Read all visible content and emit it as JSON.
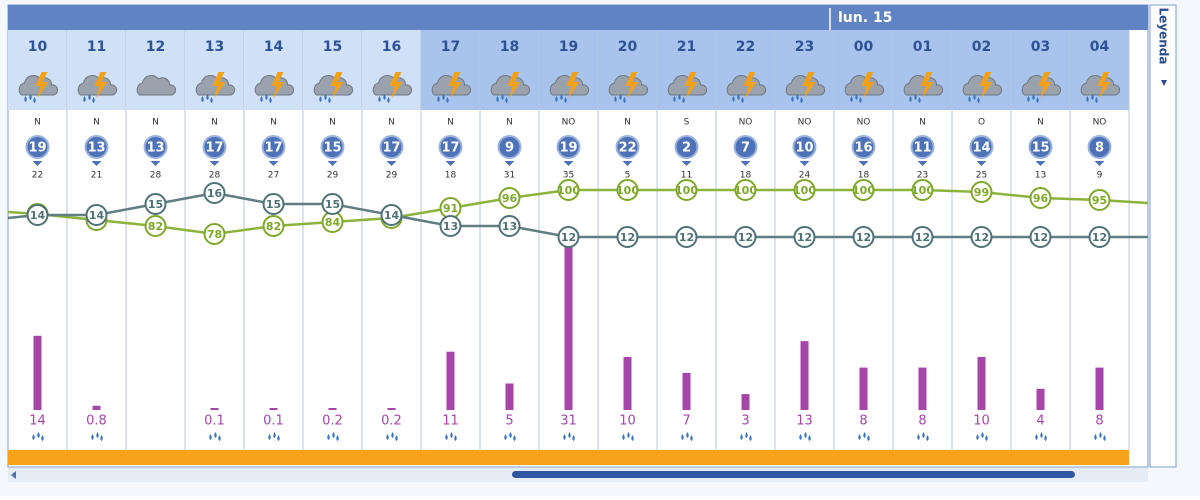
{
  "day_label": "lun. 15",
  "legend_tab": "Leyenda",
  "columns": [
    {
      "hour": "10",
      "wind_dir": "N",
      "wind": 19,
      "gust": 22,
      "temp": 14,
      "humidity": 88,
      "precip": 14
    },
    {
      "hour": "11",
      "wind_dir": "N",
      "wind": 13,
      "gust": 21,
      "temp": 14,
      "humidity": 85,
      "precip": 0.8
    },
    {
      "hour": "12",
      "wind_dir": "N",
      "wind": 13,
      "gust": 28,
      "temp": 15,
      "humidity": 82,
      "precip": null
    },
    {
      "hour": "13",
      "wind_dir": "N",
      "wind": 17,
      "gust": 28,
      "temp": 16,
      "humidity": 78,
      "precip": 0.1
    },
    {
      "hour": "14",
      "wind_dir": "N",
      "wind": 17,
      "gust": 27,
      "temp": 15,
      "humidity": 82,
      "precip": 0.1
    },
    {
      "hour": "15",
      "wind_dir": "N",
      "wind": 15,
      "gust": 29,
      "temp": 15,
      "humidity": 84,
      "precip": 0.2
    },
    {
      "hour": "16",
      "wind_dir": "N",
      "wind": 17,
      "gust": 29,
      "temp": 14,
      "humidity": 86,
      "precip": 0.2
    },
    {
      "hour": "17",
      "wind_dir": "N",
      "wind": 17,
      "gust": 18,
      "temp": 13,
      "humidity": 91,
      "precip": 11
    },
    {
      "hour": "18",
      "wind_dir": "N",
      "wind": 9,
      "gust": 31,
      "temp": 13,
      "humidity": 96,
      "precip": 5
    },
    {
      "hour": "19",
      "wind_dir": "NO",
      "wind": 19,
      "gust": 35,
      "temp": 12,
      "humidity": 100,
      "precip": 31
    },
    {
      "hour": "20",
      "wind_dir": "N",
      "wind": 22,
      "gust": 5,
      "temp": 12,
      "humidity": 100,
      "precip": 10
    },
    {
      "hour": "21",
      "wind_dir": "S",
      "wind": 2,
      "gust": 11,
      "temp": 12,
      "humidity": 100,
      "precip": 7
    },
    {
      "hour": "22",
      "wind_dir": "NO",
      "wind": 7,
      "gust": 18,
      "temp": 12,
      "humidity": 100,
      "precip": 3
    },
    {
      "hour": "23",
      "wind_dir": "NO",
      "wind": 10,
      "gust": 24,
      "temp": 12,
      "humidity": 100,
      "precip": 13
    },
    {
      "hour": "00",
      "wind_dir": "NO",
      "wind": 16,
      "gust": 18,
      "temp": 12,
      "humidity": 100,
      "precip": 8
    },
    {
      "hour": "01",
      "wind_dir": "N",
      "wind": 11,
      "gust": 23,
      "temp": 12,
      "humidity": 100,
      "precip": 8
    },
    {
      "hour": "02",
      "wind_dir": "O",
      "wind": 14,
      "gust": 25,
      "temp": 12,
      "humidity": 99,
      "precip": 10
    },
    {
      "hour": "03",
      "wind_dir": "N",
      "wind": 15,
      "gust": 13,
      "temp": 12,
      "humidity": 96,
      "precip": 4
    },
    {
      "hour": "04",
      "wind_dir": "NO",
      "wind": 8,
      "gust": 9,
      "temp": 12,
      "humidity": 95,
      "precip": 8
    }
  ]
}
